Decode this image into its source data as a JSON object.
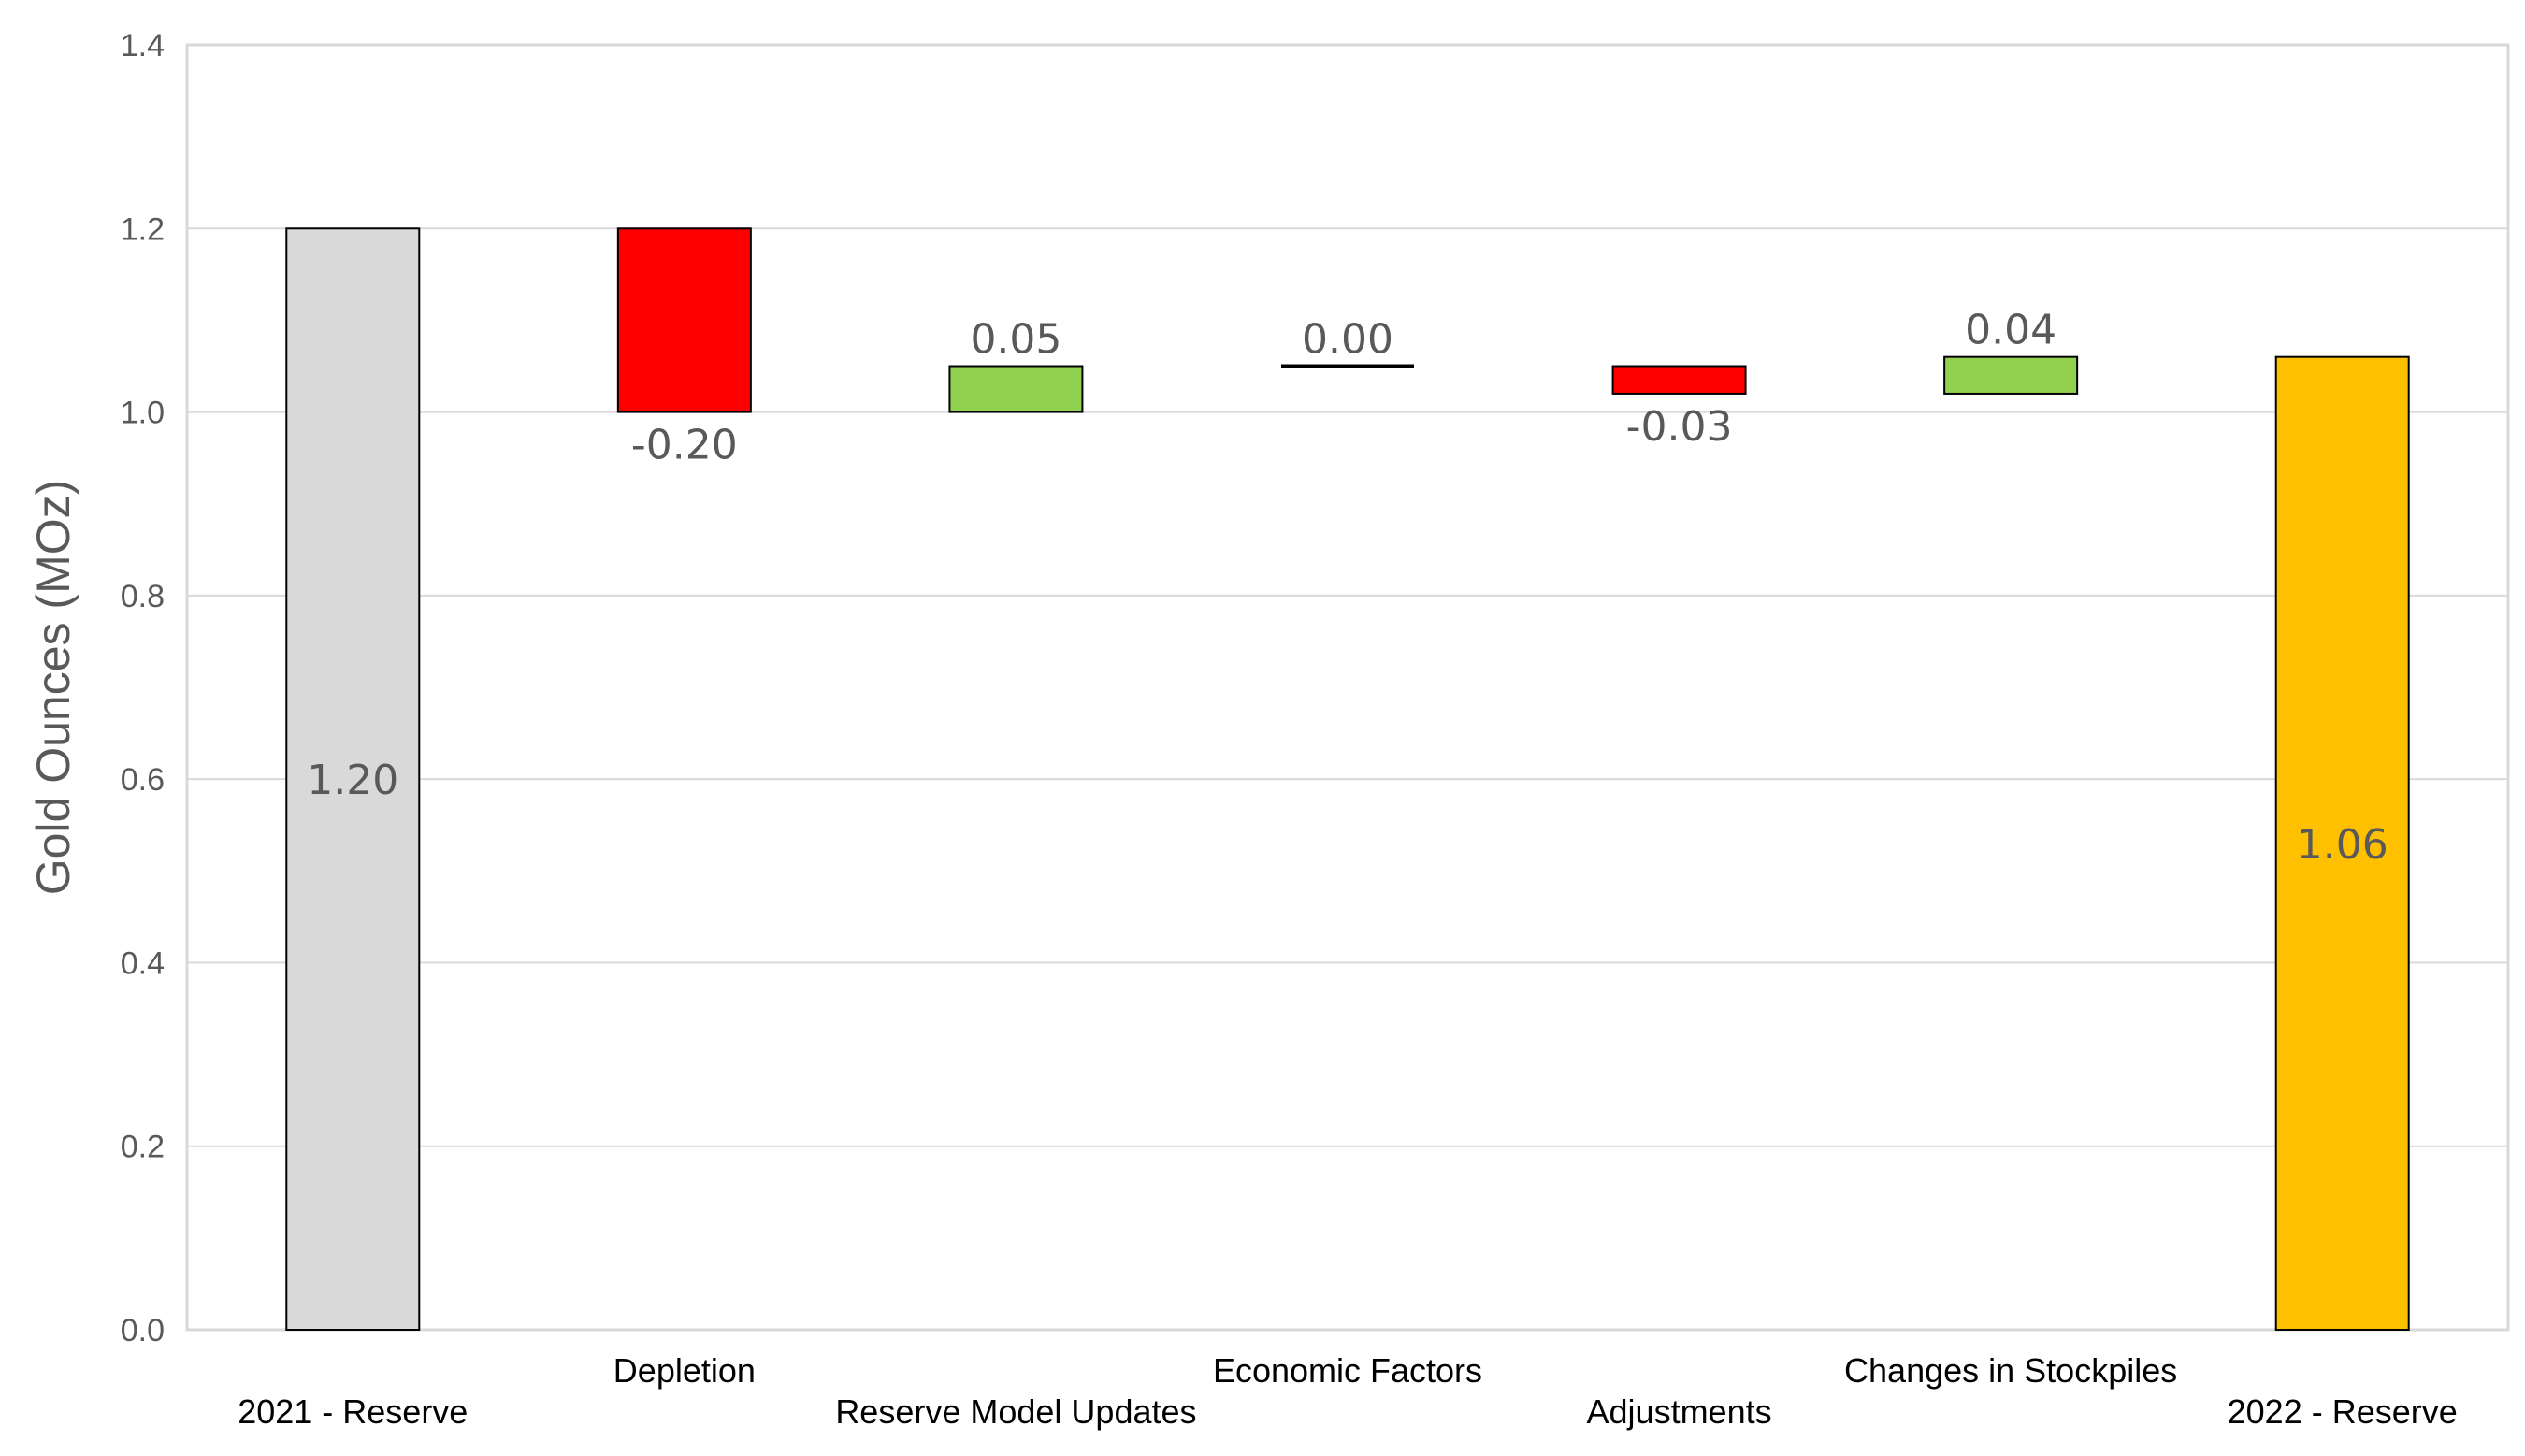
{
  "chart_data": {
    "type": "bar",
    "subtype": "waterfall",
    "ylabel": "Gold Ounces (MOz)",
    "xlabel": "",
    "title": "",
    "ylim": [
      0,
      1.4
    ],
    "yticks": [
      0.0,
      0.2,
      0.4,
      0.6,
      0.8,
      1.0,
      1.2,
      1.4
    ],
    "ytick_labels": [
      "0.0",
      "0.2",
      "0.4",
      "0.6",
      "0.8",
      "1.0",
      "1.2",
      "1.4"
    ],
    "grid": true,
    "legend": "none",
    "categories": [
      "2021 - Reserve",
      "Depletion",
      "Reserve Model Updates",
      "Economic Factors",
      "Adjustments",
      "Changes in Stockpiles",
      "2022 - Reserve"
    ],
    "values": [
      1.2,
      -0.2,
      0.05,
      0.0,
      -0.03,
      0.04,
      1.06
    ],
    "bar_kind": [
      "total",
      "delta",
      "delta",
      "delta",
      "delta",
      "delta",
      "total"
    ],
    "data_labels": [
      "1.20",
      "-0.20",
      "0.05",
      "0.00",
      "-0.03",
      "0.04",
      "1.06"
    ],
    "colors": {
      "start_total": "#d9d9d9",
      "end_total": "#ffc000",
      "increase": "#92d050",
      "decrease": "#ff0000",
      "zero": "#000000",
      "gridline": "#d9d9d9",
      "axis_text": "#595959"
    }
  }
}
